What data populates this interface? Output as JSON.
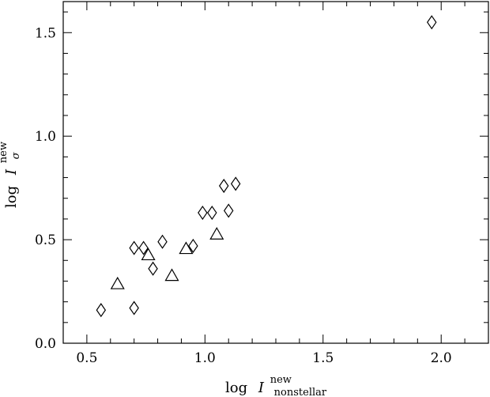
{
  "chart_data": {
    "type": "scatter",
    "xlabel": {
      "prefix": "log",
      "symbol": "I",
      "superscript": "new",
      "subscript": "nonstellar"
    },
    "ylabel": {
      "prefix": "log",
      "symbol": "I",
      "superscript": "new",
      "subscript": "σ"
    },
    "xlim": [
      0.4,
      2.2
    ],
    "ylim": [
      0.0,
      1.65
    ],
    "x_ticks": [
      "0.5",
      "1.0",
      "1.5",
      "2.0"
    ],
    "y_ticks": [
      "0.0",
      "0.5",
      "1.0",
      "1.5"
    ],
    "grid": false,
    "series": [
      {
        "marker": "diamond",
        "points": [
          [
            0.56,
            0.16
          ],
          [
            0.7,
            0.17
          ],
          [
            0.7,
            0.46
          ],
          [
            0.74,
            0.46
          ],
          [
            0.78,
            0.36
          ],
          [
            0.82,
            0.49
          ],
          [
            0.95,
            0.47
          ],
          [
            0.99,
            0.63
          ],
          [
            1.03,
            0.63
          ],
          [
            1.08,
            0.76
          ],
          [
            1.1,
            0.64
          ],
          [
            1.13,
            0.77
          ],
          [
            1.96,
            1.55
          ]
        ]
      },
      {
        "marker": "triangle",
        "points": [
          [
            0.63,
            0.29
          ],
          [
            0.76,
            0.43
          ],
          [
            0.86,
            0.33
          ],
          [
            0.92,
            0.46
          ],
          [
            1.05,
            0.53
          ]
        ]
      }
    ]
  }
}
